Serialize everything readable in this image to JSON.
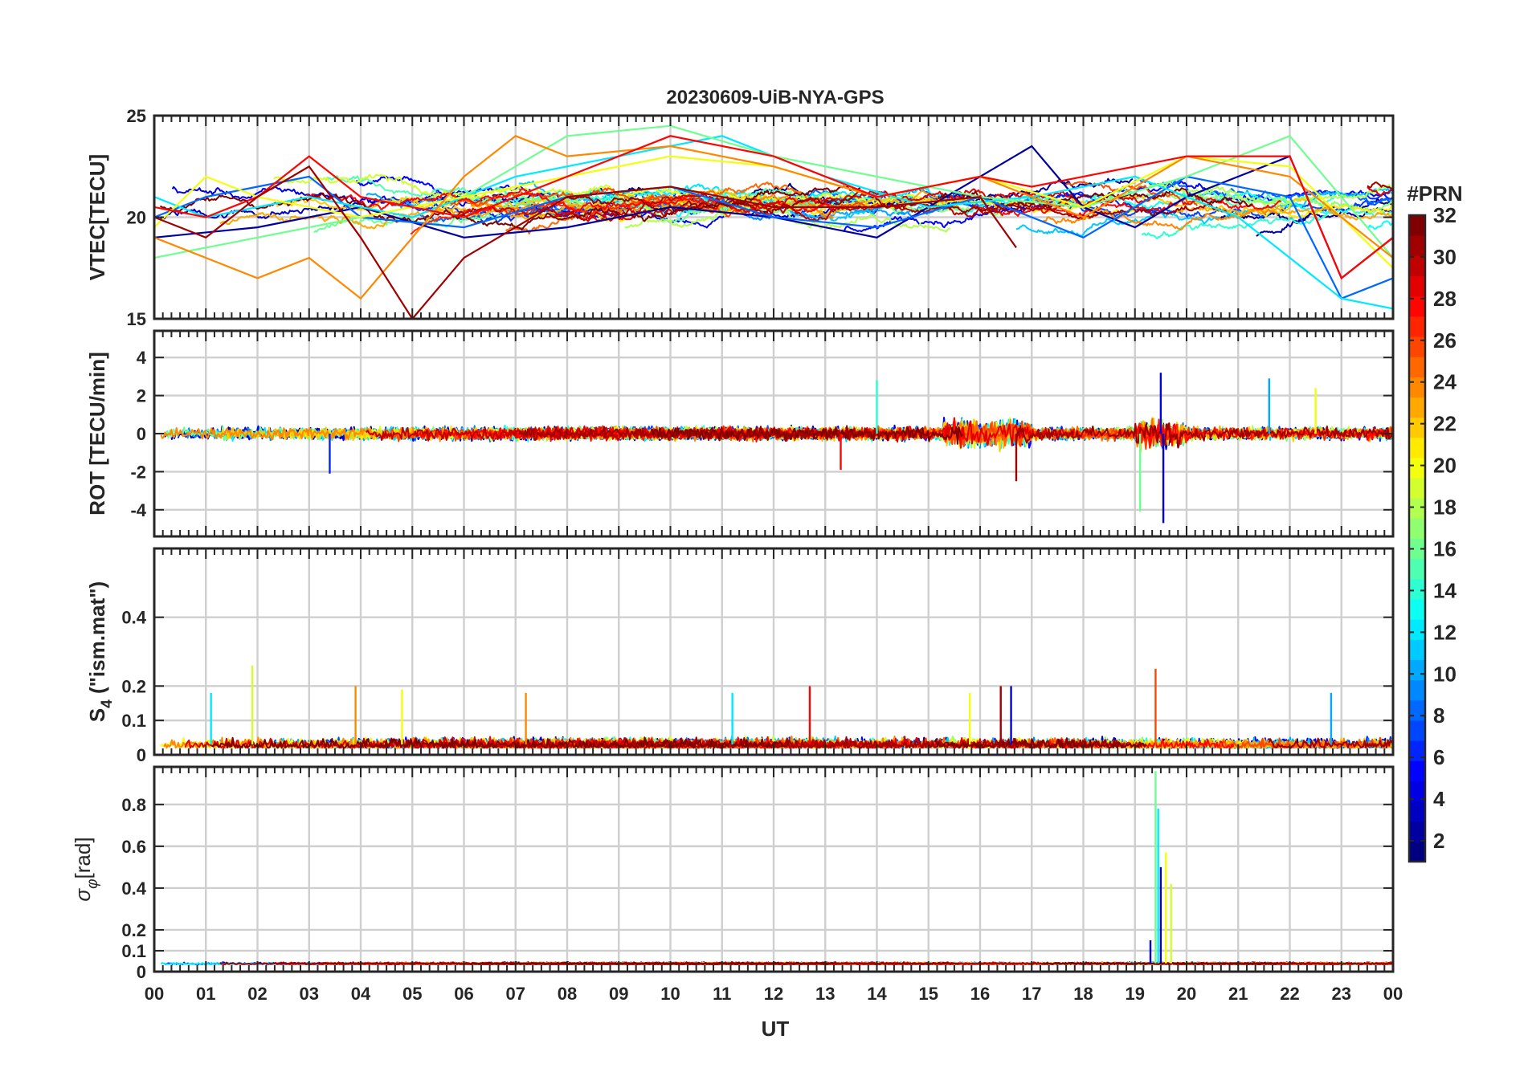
{
  "title": "20230609-UiB-NYA-GPS",
  "xlabel": "UT",
  "x_ticks": [
    "00",
    "01",
    "02",
    "03",
    "04",
    "05",
    "06",
    "07",
    "08",
    "09",
    "10",
    "11",
    "12",
    "13",
    "14",
    "15",
    "16",
    "17",
    "18",
    "19",
    "20",
    "21",
    "22",
    "23",
    "00"
  ],
  "colorbar": {
    "label": "#PRN",
    "min": 1,
    "max": 32,
    "ticks": [
      2,
      4,
      6,
      8,
      10,
      12,
      14,
      16,
      18,
      20,
      22,
      24,
      26,
      28,
      30,
      32
    ],
    "colormap": "jet"
  },
  "chart_data": [
    {
      "id": "vtec",
      "type": "line",
      "ylabel": "VTEC[TECU]",
      "ylim": [
        15,
        25
      ],
      "yticks": [
        15,
        20,
        25
      ],
      "xlim": [
        0,
        24
      ],
      "grid": true,
      "series_note_count": 32,
      "sample_series": [
        {
          "prn": 2,
          "x": [
            0,
            2,
            4,
            6,
            8,
            10,
            12,
            14,
            16,
            17,
            18,
            19,
            20,
            21,
            22,
            23,
            24
          ],
          "y": [
            19,
            19.5,
            20.5,
            19,
            19.5,
            20.5,
            20,
            19,
            22,
            23.5,
            20.5,
            19.5,
            21,
            22,
            23,
            17,
            19
          ]
        },
        {
          "prn": 8,
          "x": [
            0,
            1,
            2,
            3,
            4,
            6,
            8,
            10,
            12,
            14,
            16,
            18,
            20,
            22,
            23,
            24
          ],
          "y": [
            20,
            21,
            21.5,
            22,
            20,
            19.5,
            21,
            21.5,
            20,
            19.5,
            21,
            19,
            22,
            21,
            16,
            17
          ]
        },
        {
          "prn": 12,
          "x": [
            0,
            1,
            3,
            5,
            7,
            9,
            11,
            13,
            15,
            17,
            19,
            21,
            23,
            24
          ],
          "y": [
            21,
            20,
            21,
            20,
            22,
            23,
            24,
            22,
            20.5,
            21,
            22,
            20,
            16,
            15.5
          ]
        },
        {
          "prn": 16,
          "x": [
            0,
            1,
            2,
            4,
            6,
            8,
            10,
            12,
            14,
            16,
            18,
            20,
            22,
            24
          ],
          "y": [
            18,
            18.5,
            19,
            20,
            21,
            24,
            24.5,
            23,
            22,
            21,
            20.5,
            22,
            24,
            18
          ]
        },
        {
          "prn": 20,
          "x": [
            0,
            1,
            2,
            4,
            6,
            8,
            10,
            12,
            14,
            16,
            18,
            20,
            22,
            24
          ],
          "y": [
            19.5,
            22,
            21,
            20,
            21,
            22,
            23,
            22.5,
            21,
            22,
            20.5,
            23,
            22.5,
            17.5
          ]
        },
        {
          "prn": 24,
          "x": [
            0,
            1,
            2,
            3,
            4,
            5,
            6,
            7,
            8,
            10,
            12,
            14,
            16,
            18,
            20,
            22,
            24
          ],
          "y": [
            19,
            18,
            17,
            18,
            16,
            19,
            22,
            24,
            23,
            23.5,
            22.5,
            21,
            22,
            20,
            23,
            22,
            18
          ]
        },
        {
          "prn": 28,
          "x": [
            0,
            1,
            2,
            3,
            4,
            6,
            8,
            10,
            12,
            14,
            16,
            17,
            18,
            20,
            22,
            23,
            24
          ],
          "y": [
            20.5,
            20,
            21,
            23,
            21,
            20,
            22,
            24,
            23,
            21,
            22,
            21.5,
            22,
            23,
            23,
            17,
            19
          ]
        },
        {
          "prn": 31,
          "x": [
            0,
            1,
            2,
            3,
            4,
            5,
            6,
            7,
            8,
            10,
            12,
            14,
            16,
            16.7
          ],
          "y": [
            20,
            19,
            21,
            22.5,
            19,
            15,
            18,
            19.5,
            21,
            21.5,
            20.5,
            20.5,
            21,
            18.5
          ]
        }
      ]
    },
    {
      "id": "rot",
      "type": "line",
      "ylabel": "ROT [TECU/min]",
      "ylim": [
        -5.4,
        5.4
      ],
      "yticks": [
        -4,
        -2,
        0,
        2,
        4
      ],
      "xlim": [
        0,
        24
      ],
      "grid": true,
      "typical_amplitude": 0.7,
      "spikes": [
        {
          "x": 3.4,
          "y": -2.1,
          "prn": 6
        },
        {
          "x": 13.3,
          "y": -1.9,
          "prn": 28
        },
        {
          "x": 14.0,
          "y": 2.8,
          "prn": 14
        },
        {
          "x": 16.7,
          "y": -2.5,
          "prn": 31
        },
        {
          "x": 19.1,
          "y": -4.1,
          "prn": 16
        },
        {
          "x": 19.5,
          "y": 3.2,
          "prn": 4
        },
        {
          "x": 19.55,
          "y": -4.7,
          "prn": 4
        },
        {
          "x": 21.6,
          "y": 2.9,
          "prn": 10
        },
        {
          "x": 22.5,
          "y": 2.4,
          "prn": 20
        }
      ]
    },
    {
      "id": "s4",
      "type": "line",
      "ylabel": "S_4 (\"ism.mat\")",
      "ylabel_main": "S",
      "ylabel_sub": "4",
      "ylabel_rest": " (\"ism.mat\")",
      "ylim": [
        0,
        0.6
      ],
      "yticks": [
        0,
        0.1,
        0.2,
        0.4
      ],
      "ytick_labels": [
        "0",
        "0.1",
        "0.2",
        "0.4"
      ],
      "xlim": [
        0,
        24
      ],
      "grid": true,
      "peaks": [
        {
          "x": 1.1,
          "y": 0.18,
          "prn": 12
        },
        {
          "x": 1.9,
          "y": 0.26,
          "prn": 19
        },
        {
          "x": 3.9,
          "y": 0.2,
          "prn": 24
        },
        {
          "x": 4.8,
          "y": 0.19,
          "prn": 20
        },
        {
          "x": 7.2,
          "y": 0.18,
          "prn": 24
        },
        {
          "x": 11.2,
          "y": 0.18,
          "prn": 12
        },
        {
          "x": 12.7,
          "y": 0.2,
          "prn": 28
        },
        {
          "x": 15.8,
          "y": 0.18,
          "prn": 20
        },
        {
          "x": 16.4,
          "y": 0.2,
          "prn": 31
        },
        {
          "x": 16.6,
          "y": 0.2,
          "prn": 4
        },
        {
          "x": 19.4,
          "y": 0.25,
          "prn": 26
        },
        {
          "x": 22.8,
          "y": 0.18,
          "prn": 10
        }
      ]
    },
    {
      "id": "sigma_phi",
      "type": "line",
      "ylabel": "σ_φ[rad]",
      "ylabel_main": "σ",
      "ylabel_sub": "φ",
      "ylabel_rest": "[rad]",
      "ylim": [
        0,
        0.98
      ],
      "yticks": [
        0,
        0.1,
        0.2,
        0.4,
        0.6,
        0.8
      ],
      "ytick_labels": [
        "0",
        "0.1",
        "0.2",
        "0.4",
        "0.6",
        "0.8"
      ],
      "xlim": [
        0,
        24
      ],
      "grid": true,
      "peaks": [
        {
          "x": 19.3,
          "y": 0.15,
          "prn": 4
        },
        {
          "x": 19.4,
          "y": 0.96,
          "prn": 16
        },
        {
          "x": 19.45,
          "y": 0.78,
          "prn": 12
        },
        {
          "x": 19.5,
          "y": 0.5,
          "prn": 2
        },
        {
          "x": 19.6,
          "y": 0.57,
          "prn": 20
        },
        {
          "x": 19.7,
          "y": 0.42,
          "prn": 19
        }
      ]
    }
  ]
}
